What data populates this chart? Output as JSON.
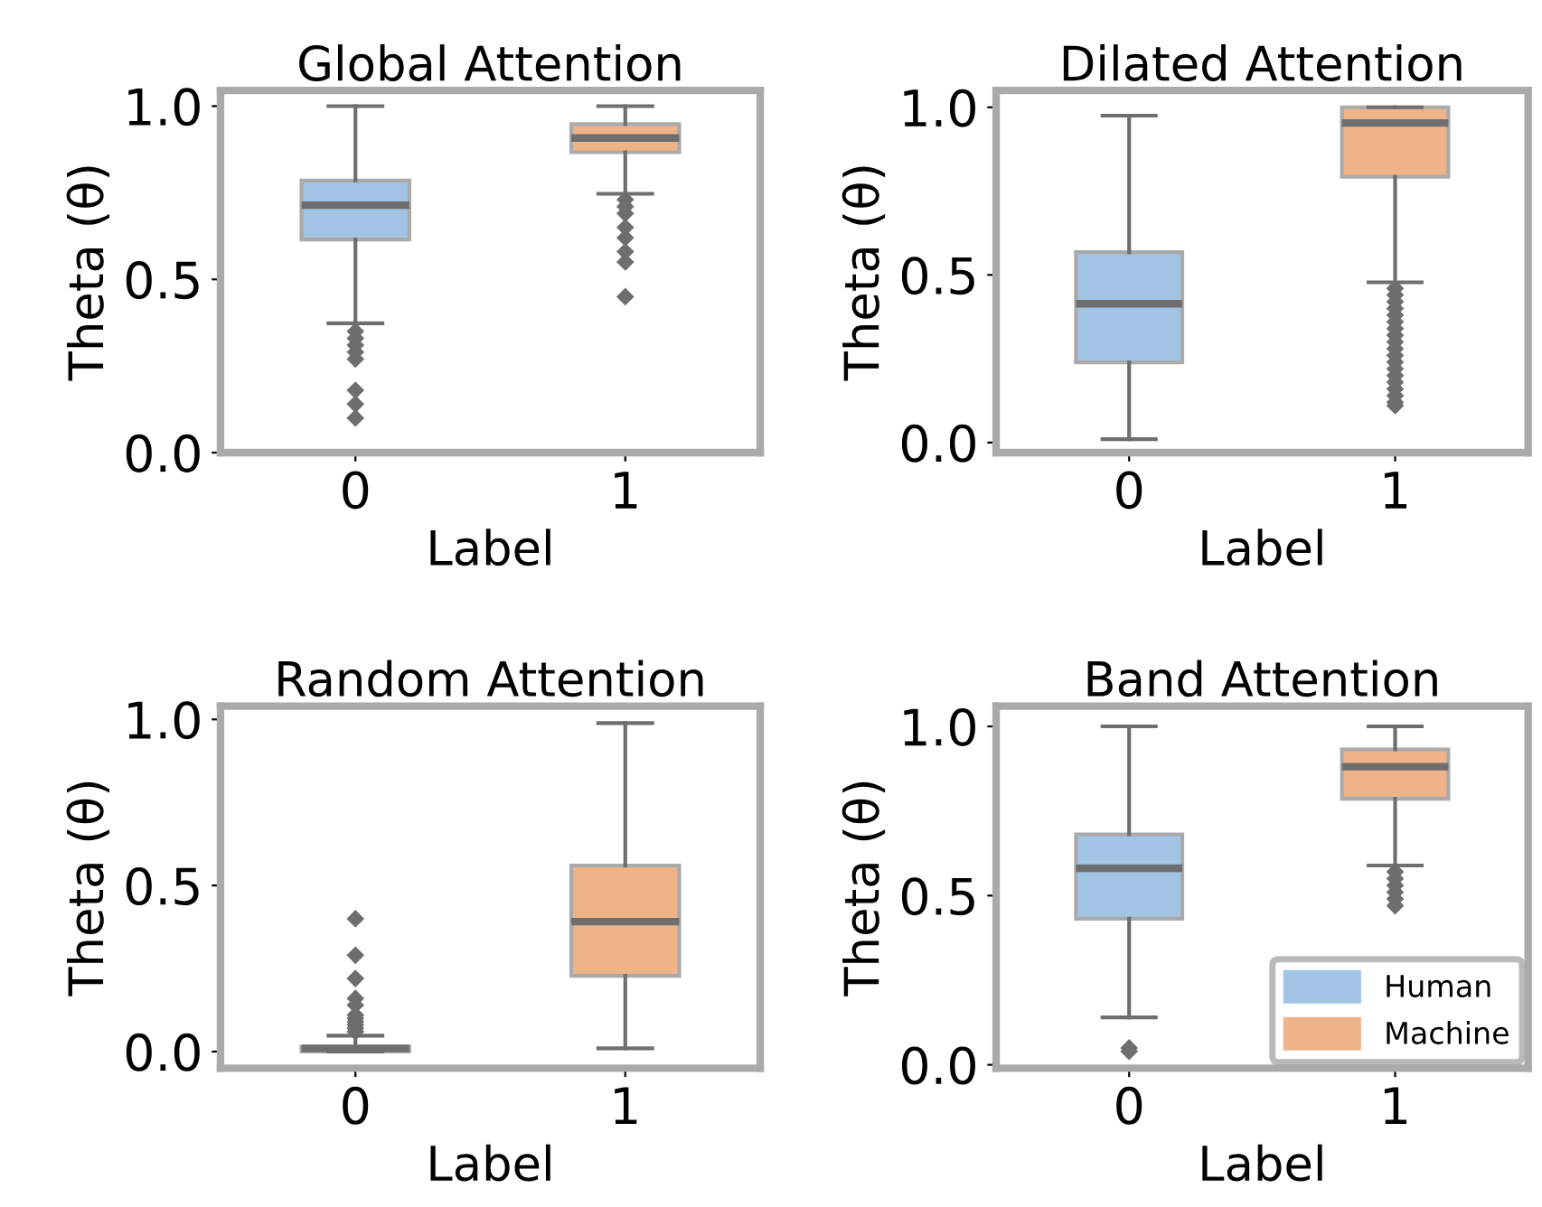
{
  "chart_data": [
    {
      "type": "box",
      "title": "Global Attention",
      "xlabel": "Label",
      "ylabel": "Theta (θ)",
      "categories": [
        "0",
        "1"
      ],
      "colors": [
        "#a1c4e4",
        "#eeb388"
      ],
      "boxes": [
        {
          "low": 0.373,
          "q1": 0.615,
          "median": 0.714,
          "q3": 0.785,
          "high": 1.0,
          "outliers": [
            0.35,
            0.33,
            0.31,
            0.29,
            0.27,
            0.18,
            0.14,
            0.1
          ]
        },
        {
          "low": 0.747,
          "q1": 0.867,
          "median": 0.908,
          "q3": 0.948,
          "high": 1.0,
          "outliers": [
            0.73,
            0.71,
            0.69,
            0.65,
            0.62,
            0.58,
            0.55,
            0.45
          ]
        }
      ],
      "ylim": [
        0,
        1.045
      ],
      "yticks": [
        {
          "value": 0,
          "label": "0.0"
        },
        {
          "value": 0.5,
          "label": "0.5"
        },
        {
          "value": 1,
          "label": "1.0"
        }
      ],
      "grid": false,
      "legend": false
    },
    {
      "type": "box",
      "title": "Dilated Attention",
      "xlabel": "Label",
      "ylabel": "Theta (θ)",
      "categories": [
        "0",
        "1"
      ],
      "colors": [
        "#a1c4e4",
        "#eeb388"
      ],
      "boxes": [
        {
          "low": 0.01,
          "q1": 0.239,
          "median": 0.414,
          "q3": 0.568,
          "high": 0.975
        },
        {
          "low": 0.478,
          "q1": 0.793,
          "median": 0.953,
          "q3": 1.0,
          "high": 1.0,
          "outliers": [
            0.46,
            0.44,
            0.42,
            0.4,
            0.38,
            0.36,
            0.34,
            0.32,
            0.3,
            0.28,
            0.26,
            0.24,
            0.22,
            0.2,
            0.18,
            0.16,
            0.14,
            0.12,
            0.11
          ]
        }
      ],
      "ylim": [
        -0.03,
        1.05
      ],
      "yticks": [
        {
          "value": 0,
          "label": "0.0"
        },
        {
          "value": 0.5,
          "label": "0.5"
        },
        {
          "value": 1,
          "label": "1.0"
        }
      ],
      "grid": false,
      "legend": false
    },
    {
      "type": "box",
      "title": "Random Attention",
      "xlabel": "Label",
      "ylabel": "Theta (θ)",
      "categories": [
        "0",
        "1"
      ],
      "colors": [
        "#a1c4e4",
        "#eeb388"
      ],
      "boxes": [
        {
          "low": 0.0,
          "q1": 0.0,
          "median": 0.01,
          "q3": 0.015,
          "high": 0.048,
          "outliers": [
            0.4,
            0.29,
            0.22,
            0.16,
            0.14,
            0.11,
            0.1,
            0.09,
            0.08,
            0.07,
            0.06
          ]
        },
        {
          "low": 0.01,
          "q1": 0.228,
          "median": 0.391,
          "q3": 0.56,
          "high": 0.989
        }
      ],
      "ylim": [
        -0.05,
        1.04
      ],
      "yticks": [
        {
          "value": 0,
          "label": "0.0"
        },
        {
          "value": 0.5,
          "label": "0.5"
        },
        {
          "value": 1,
          "label": "1.0"
        }
      ],
      "grid": false,
      "legend": false
    },
    {
      "type": "box",
      "title": "Band Attention",
      "xlabel": "Label",
      "ylabel": "Theta (θ)",
      "categories": [
        "0",
        "1"
      ],
      "series": [
        {
          "name": "Human",
          "color": "#a1c4e4",
          "boxes": [
            {
              "low": 0.14,
              "q1": 0.432,
              "median": 0.581,
              "q3": 0.681,
              "high": 1.0,
              "outliers": [
                0.05,
                0.04
              ]
            },
            null
          ]
        },
        {
          "name": "Machine",
          "color": "#eeb388",
          "boxes": [
            null,
            {
              "low": 0.589,
              "q1": 0.786,
              "median": 0.881,
              "q3": 0.932,
              "high": 1.0,
              "outliers": [
                0.57,
                0.55,
                0.53,
                0.51,
                0.49,
                0.47
              ]
            }
          ]
        }
      ],
      "ylim": [
        -0.01,
        1.06
      ],
      "yticks": [
        {
          "value": 0,
          "label": "0.0"
        },
        {
          "value": 0.5,
          "label": "0.5"
        },
        {
          "value": 1,
          "label": "1.0"
        }
      ],
      "grid": false,
      "legend": "bottom right"
    }
  ]
}
